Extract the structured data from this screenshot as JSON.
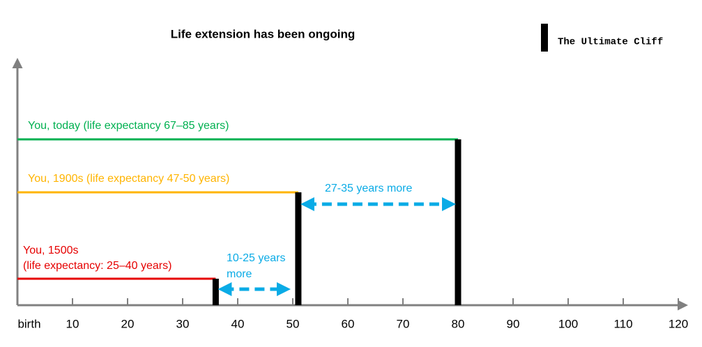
{
  "chart_data": {
    "type": "lifespan",
    "title": "Life extension has been ongoing",
    "legend_label": "The Ultimate Cliff",
    "cliff_color": "#000000",
    "axis_color": "#808080",
    "arrow_color": "#0aabe6",
    "xlim": [
      0,
      120
    ],
    "xticks": [
      {
        "value": 0,
        "label": "birth"
      },
      10,
      20,
      30,
      40,
      50,
      60,
      70,
      80,
      90,
      100,
      110,
      120
    ],
    "series": [
      {
        "name": "You, 1500s",
        "note": "(life expectancy: 25–40 years)",
        "color": "#e60000",
        "value": 36
      },
      {
        "name": "You, 1900s (life expectancy 47-50 years)",
        "color": "#ffb400",
        "value": 51
      },
      {
        "name": "You, today (life expectancy 67–85 years)",
        "color": "#00b050",
        "value": 80
      }
    ],
    "annotations": [
      {
        "text_lines": [
          "10-25 years",
          "more"
        ],
        "from": 36,
        "to": 50
      },
      {
        "text_lines": [
          "27-35 years more"
        ],
        "from": 51,
        "to": 80
      }
    ]
  }
}
